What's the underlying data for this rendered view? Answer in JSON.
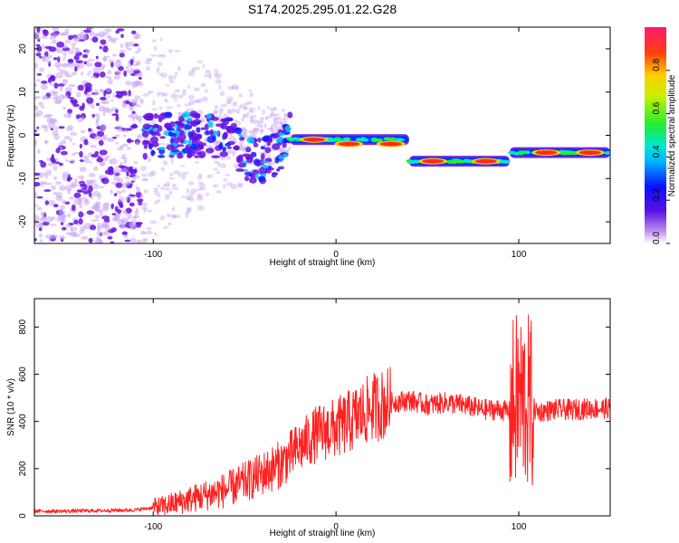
{
  "figure_title": "S174.2025.295.01.22.G28",
  "colors": {
    "snr_line": "#ff2020",
    "scatter_light": "#c9a8f5",
    "scatter_dark": "#6a12e0",
    "track_fill": "#0033ff"
  },
  "chart_data": [
    {
      "type": "heatmap",
      "title": "",
      "xlabel": "Height of straight line (km)",
      "ylabel": "Frequency (Hz)",
      "xlim": [
        -165,
        150
      ],
      "ylim": [
        -25,
        25
      ],
      "xticks": [
        -100,
        0,
        100
      ],
      "xtick_labels": [
        "-100",
        "0",
        "100"
      ],
      "yticks": [
        -20,
        -10,
        0,
        10,
        20
      ],
      "ytick_labels": [
        "-20",
        "-10",
        "0",
        "10",
        "20"
      ],
      "track_segments": [
        {
          "x0": -105,
          "x1": -25,
          "y": 0,
          "spread": 5,
          "kind": "scatter"
        },
        {
          "x0": -25,
          "x1": 40,
          "y": -1,
          "spread": 1,
          "kind": "ridge"
        },
        {
          "x0": 40,
          "x1": 95,
          "y": -6,
          "spread": 1,
          "kind": "ridge"
        },
        {
          "x0": 95,
          "x1": 150,
          "y": -4,
          "spread": 1,
          "kind": "ridge"
        }
      ],
      "hot_spots": [
        {
          "x": -12,
          "y": -1
        },
        {
          "x": 7,
          "y": -2
        },
        {
          "x": 30,
          "y": -2
        },
        {
          "x": 53,
          "y": -6
        },
        {
          "x": 82,
          "y": -6
        },
        {
          "x": 115,
          "y": -4
        },
        {
          "x": 139,
          "y": -4
        }
      ],
      "colorbar": {
        "label": "Normalized spectral amplitude",
        "range": [
          0,
          1
        ],
        "ticks": [
          0,
          0.2,
          0.4,
          0.6,
          0.8
        ],
        "tick_labels": [
          "0.0",
          "0.2",
          "0.4",
          "0.6",
          "0.8"
        ]
      }
    },
    {
      "type": "line",
      "title": "",
      "xlabel": "Height of straight line (km)",
      "ylabel": "SNR (10 * v/v)",
      "xlim": [
        -165,
        150
      ],
      "ylim": [
        0,
        920
      ],
      "xticks": [
        -100,
        0,
        100
      ],
      "xtick_labels": [
        "-100",
        "0",
        "100"
      ],
      "yticks": [
        0,
        200,
        400,
        600,
        800
      ],
      "ytick_labels": [
        "0",
        "200",
        "400",
        "600",
        "800"
      ],
      "series": [
        {
          "name": "SNR",
          "x": [
            -165,
            -150,
            -130,
            -110,
            -95,
            -80,
            -60,
            -45,
            -30,
            -20,
            -10,
            0,
            10,
            20,
            30,
            40,
            50,
            60,
            70,
            80,
            90,
            95,
            100,
            105,
            110,
            120,
            130,
            140,
            150
          ],
          "values": [
            20,
            20,
            22,
            25,
            40,
            70,
            110,
            160,
            220,
            290,
            350,
            370,
            410,
            460,
            480,
            490,
            470,
            480,
            470,
            450,
            450,
            440,
            500,
            480,
            440,
            450,
            450,
            455,
            455
          ]
        }
      ]
    }
  ]
}
